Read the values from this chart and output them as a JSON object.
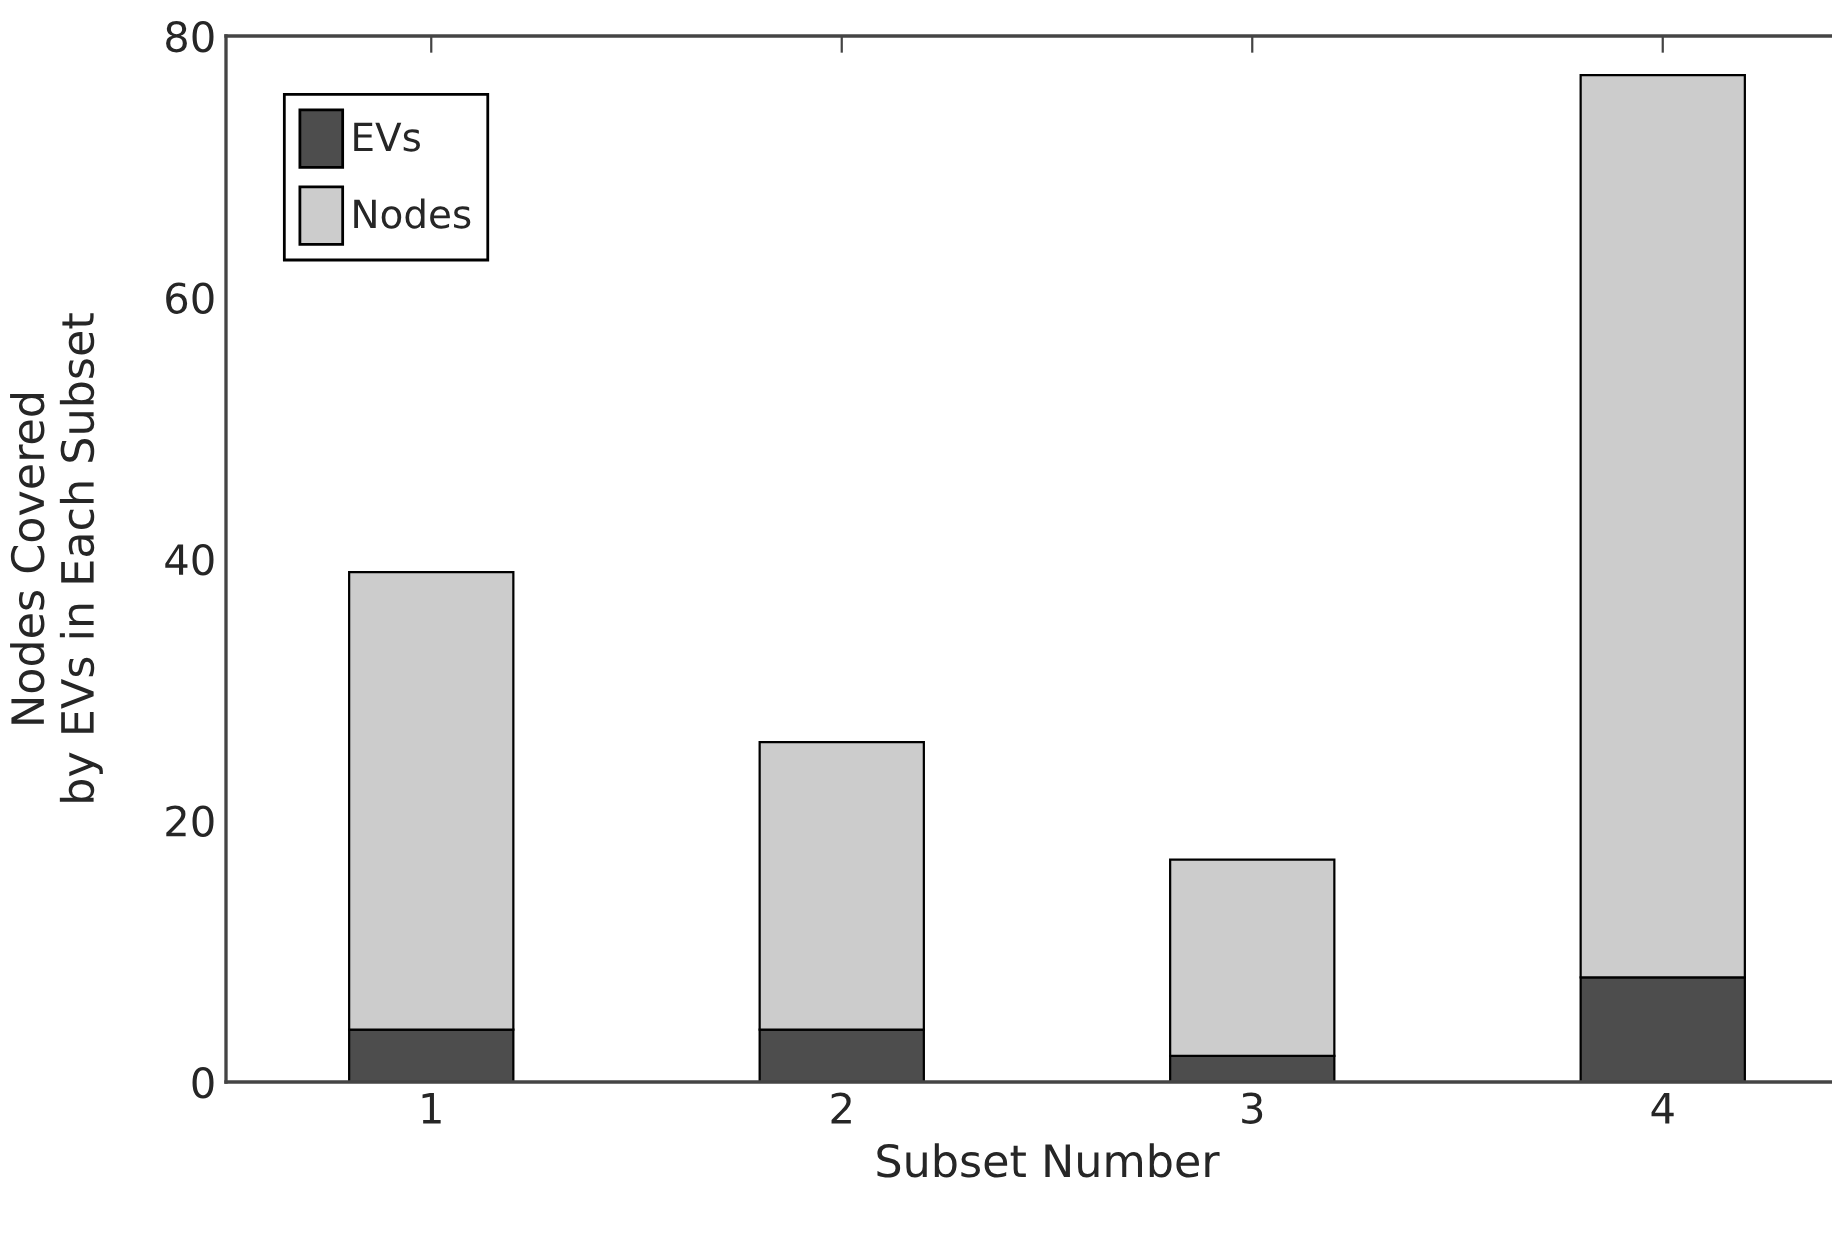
{
  "chart_data": {
    "type": "bar",
    "stacked": true,
    "xlabel": "Subset Number",
    "ylabel": "Nodes Covered\nby EVs in Each Subset",
    "categories": [
      "1",
      "2",
      "3",
      "4"
    ],
    "series": [
      {
        "name": "EVs",
        "color": "#4d4d4d",
        "values": [
          4,
          4,
          2,
          8
        ]
      },
      {
        "name": "Nodes",
        "color": "#cccccc",
        "values": [
          35,
          22,
          15,
          69
        ]
      }
    ],
    "ylim": [
      0,
      80
    ],
    "yticks": [
      0,
      20,
      40,
      60,
      80
    ],
    "legend": "top left",
    "grid": false
  }
}
